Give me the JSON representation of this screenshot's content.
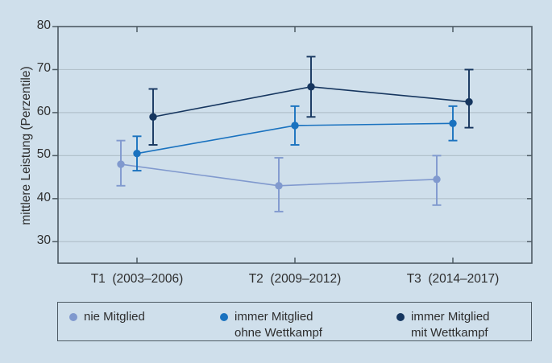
{
  "figure": {
    "background": "#cfdfeb",
    "axis_color": "#4d5a63",
    "grid_color": "#b2c1cb",
    "text_color": "#2d2d2d"
  },
  "chart_data": {
    "type": "line",
    "title": "",
    "xlabel": "",
    "ylabel": "mittlere Leistung (Perzentile)",
    "categories": [
      "T1  (2003–2006)",
      "T2  (2009–2012)",
      "T3  (2014–2017)"
    ],
    "ylim": [
      25,
      80
    ],
    "yticks": [
      30,
      40,
      50,
      60,
      70,
      80
    ],
    "grid": "horizontal",
    "error_bars": true,
    "legend_position": "bottom-box",
    "series": [
      {
        "name": "nie Mitglied",
        "name_lines": [
          "nie Mitglied"
        ],
        "color": "#8099ce",
        "values": [
          48,
          43,
          44.5
        ],
        "err_low": [
          43,
          37,
          38.5
        ],
        "err_high": [
          53.5,
          49.5,
          50
        ],
        "x_offset": -20
      },
      {
        "name": "immer Mitglied ohne Wettkampf",
        "name_lines": [
          "immer Mitglied",
          "ohne Wettkampf"
        ],
        "color": "#1a72bf",
        "values": [
          50.5,
          57,
          57.5
        ],
        "err_low": [
          46.5,
          52.5,
          53.5
        ],
        "err_high": [
          54.5,
          61.5,
          61.5
        ],
        "x_offset": 0
      },
      {
        "name": "immer Mitglied mit Wettkampf",
        "name_lines": [
          "immer Mitglied",
          "mit Wettkampf"
        ],
        "color": "#16365f",
        "values": [
          59,
          66,
          62.5
        ],
        "err_low": [
          52.5,
          59,
          56.5
        ],
        "err_high": [
          65.5,
          73,
          70
        ],
        "x_offset": 20
      }
    ]
  }
}
